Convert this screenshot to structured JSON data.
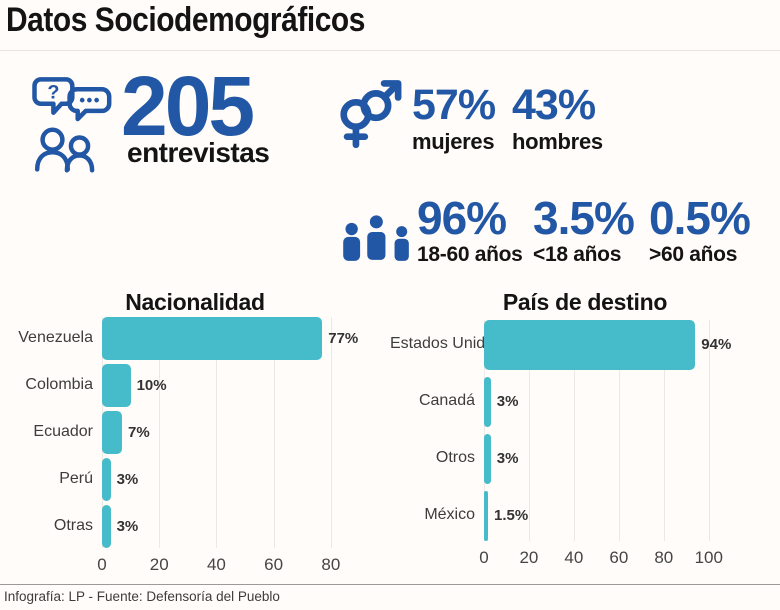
{
  "title": "Datos Sociodemográficos",
  "stats": {
    "interviews": {
      "value": "205",
      "label": "entrevistas",
      "icon": "chat-question-people"
    },
    "gender": {
      "icon": "male-female-symbols",
      "items": [
        {
          "value": "57%",
          "label": "mujeres"
        },
        {
          "value": "43%",
          "label": "hombres"
        }
      ]
    },
    "age": {
      "icon": "family-group",
      "items": [
        {
          "value": "96%",
          "label": "18-60 años"
        },
        {
          "value": "3.5%",
          "label": "<18 años"
        },
        {
          "value": "0.5%",
          "label": ">60 años"
        }
      ]
    }
  },
  "chart_data": [
    {
      "type": "bar",
      "orientation": "horizontal",
      "title": "Nacionalidad",
      "categories": [
        "Venezuela",
        "Colombia",
        "Ecuador",
        "Perú",
        "Otras"
      ],
      "values": [
        77,
        10,
        7,
        3,
        3
      ],
      "value_labels": [
        "77%",
        "10%",
        "7%",
        "3%",
        "3%"
      ],
      "xticks": [
        0,
        20,
        40,
        60,
        80
      ],
      "xlim": [
        0,
        86
      ],
      "grid": true,
      "legend": false,
      "bar_color": "#46bccb"
    },
    {
      "type": "bar",
      "orientation": "horizontal",
      "title": "País de destino",
      "categories": [
        "Estados Unidos",
        "Canadá",
        "Otros",
        "México"
      ],
      "values": [
        94,
        3,
        3,
        1.5
      ],
      "value_labels": [
        "94%",
        "3%",
        "3%",
        "1.5%"
      ],
      "xticks": [
        0,
        20,
        40,
        60,
        80,
        100
      ],
      "xlim": [
        0,
        105
      ],
      "grid": true,
      "legend": false,
      "bar_color": "#46bccb"
    }
  ],
  "footer": {
    "credit": "Infografía: LP - Fuente: Defensoría del Pueblo"
  },
  "colors": {
    "accent_blue": "#2257a5",
    "bar_teal": "#46bccb",
    "heading": "#141414",
    "label_gray": "#3d3d3d"
  }
}
